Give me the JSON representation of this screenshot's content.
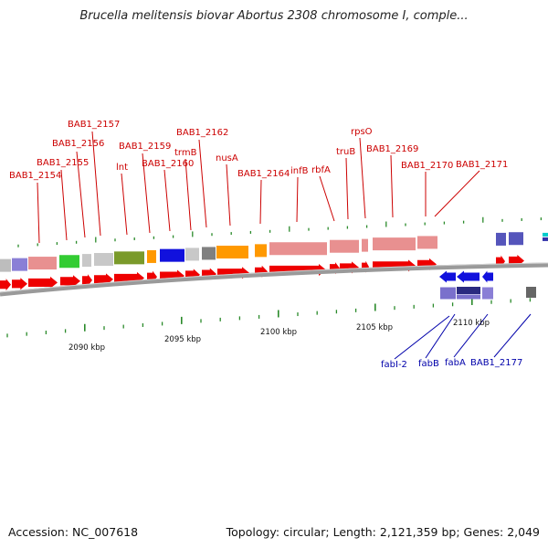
{
  "title": "Brucella melitensis biovar Abortus 2308 chromosome I, comple...",
  "footer": {
    "accession": "Accession: NC_007618",
    "topology": "Topology: circular; Length: 2,121,359 bp; Genes: 2,049"
  },
  "colors": {
    "forward_label": "#cc0000",
    "reverse_label": "#0000aa",
    "backbone": "#888888",
    "tick": "#2a8a2a"
  },
  "scale_labels": [
    {
      "text": "2090 kbp",
      "kbp": 2090
    },
    {
      "text": "2095 kbp",
      "kbp": 2095
    },
    {
      "text": "2100 kbp",
      "kbp": 2100
    },
    {
      "text": "2105 kbp",
      "kbp": 2105
    },
    {
      "text": "2110 kbp",
      "kbp": 2110
    }
  ],
  "forward_gene_labels": [
    "BAB1_2154",
    "BAB1_2155",
    "BAB1_2156",
    "BAB1_2157",
    "lnt",
    "BAB1_2159",
    "BAB1_2160",
    "trmB",
    "BAB1_2162",
    "nusA",
    "BAB1_2164",
    "infB",
    "rbfA",
    "truB",
    "rpsO",
    "BAB1_2169",
    "BAB1_2170",
    "BAB1_2171"
  ],
  "reverse_gene_labels": [
    "fabI-2",
    "fabB",
    "fabA",
    "BAB1_2177"
  ]
}
